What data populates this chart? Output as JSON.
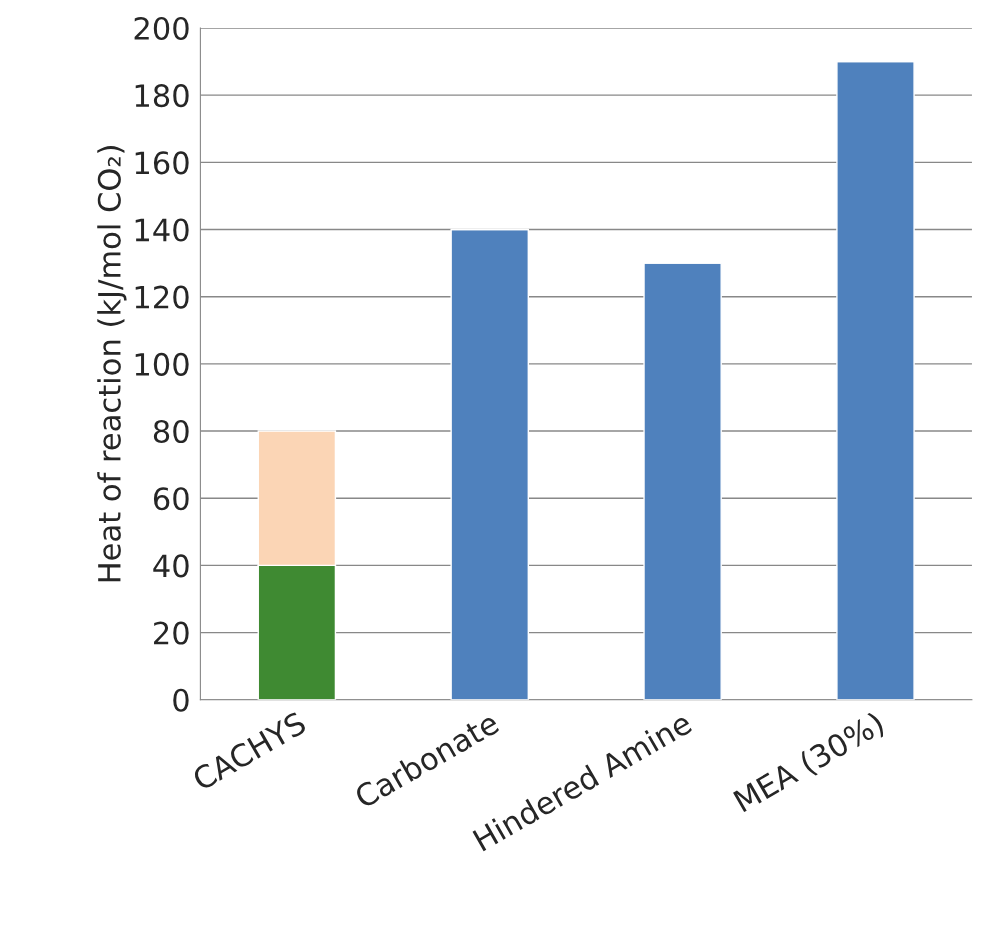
{
  "chart_data": {
    "type": "bar",
    "stacked": true,
    "ylabel": "Heat of reaction (kJ/mol CO₂)",
    "categories": [
      "CACHYS",
      "Carbonate",
      "Hindered Amine",
      "MEA (30%)"
    ],
    "series": [
      {
        "colors": [
          "#3f8a32",
          "#4f81bd",
          "#4f81bd",
          "#4f81bd"
        ],
        "values": [
          40,
          140,
          130,
          190
        ]
      },
      {
        "color": "#fbd5b5",
        "values": [
          40,
          null,
          null,
          null
        ]
      }
    ],
    "ylim": [
      0,
      200
    ],
    "yticks": [
      0,
      20,
      40,
      60,
      80,
      100,
      120,
      140,
      160,
      180,
      200
    ],
    "grid": "y",
    "legend": false
  }
}
